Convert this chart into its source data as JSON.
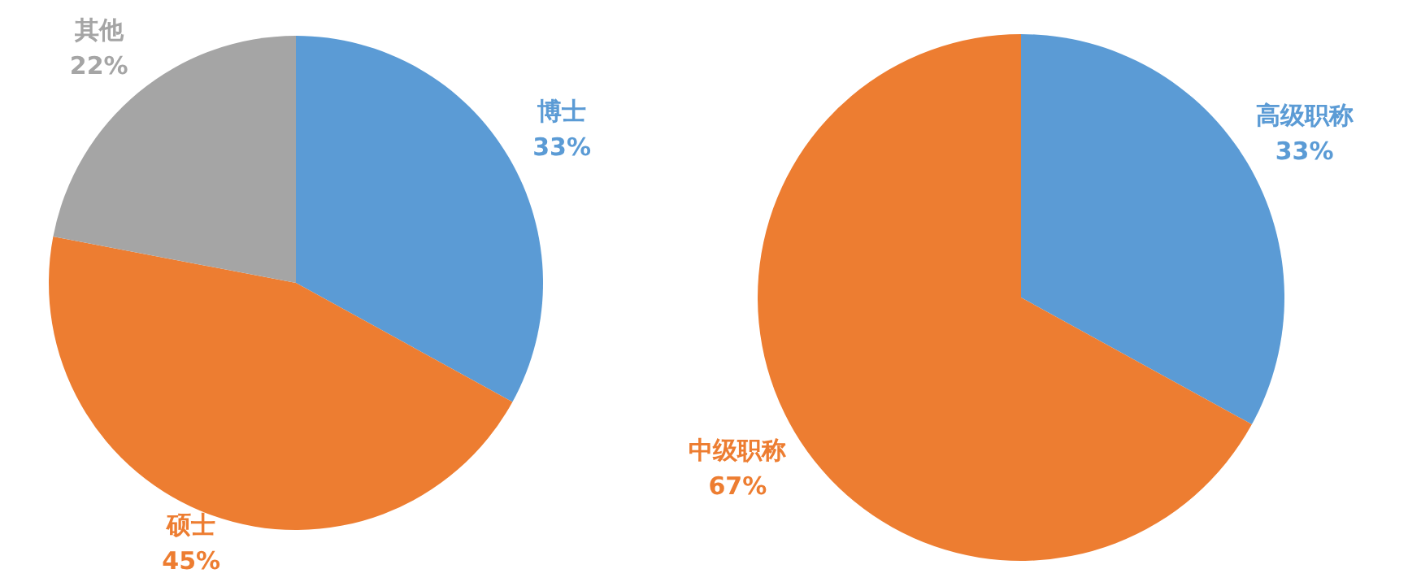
{
  "chart_data": [
    {
      "type": "pie",
      "categories": [
        "博士",
        "硕士",
        "其他"
      ],
      "values": [
        33,
        45,
        22
      ],
      "value_labels": [
        "33%",
        "45%",
        "22%"
      ],
      "colors": [
        "#5b9bd5",
        "#ed7d31",
        "#a5a5a5"
      ]
    },
    {
      "type": "pie",
      "categories": [
        "高级职称",
        "中级职称"
      ],
      "values": [
        33,
        67
      ],
      "value_labels": [
        "33%",
        "67%"
      ],
      "colors": [
        "#5b9bd5",
        "#ed7d31"
      ]
    }
  ]
}
